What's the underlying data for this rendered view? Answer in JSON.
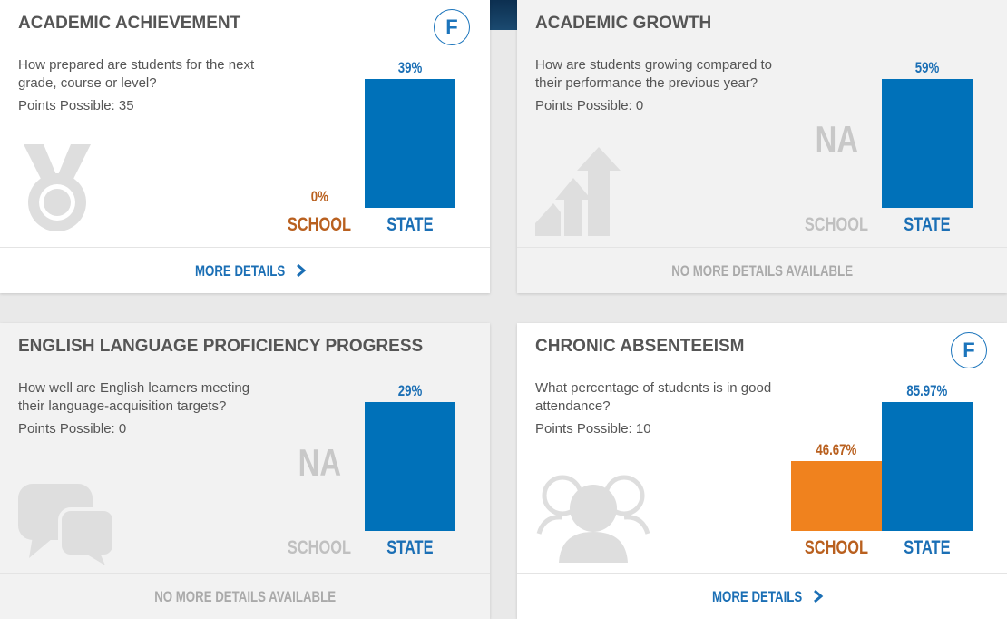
{
  "cards": [
    {
      "title": "ACADEMIC ACHIEVEMENT",
      "grade": "F",
      "question": "How prepared are students for the next grade, course or level?",
      "points": "Points Possible: 35",
      "school": {
        "label": "SCHOOL",
        "value": 0,
        "value_label": "0%"
      },
      "state": {
        "label": "STATE",
        "value": 39,
        "value_label": "39%"
      },
      "footer": "MORE DETAILS",
      "link": true
    },
    {
      "title": "ACADEMIC GROWTH",
      "question": "How are students growing compared to their performance the previous year?",
      "points": "Points Possible: 0",
      "school": {
        "label": "SCHOOL",
        "value": null,
        "value_label": "NA"
      },
      "state": {
        "label": "STATE",
        "value": 59,
        "value_label": "59%"
      },
      "footer": "NO MORE DETAILS AVAILABLE",
      "link": false
    },
    {
      "title": "ENGLISH LANGUAGE PROFICIENCY PROGRESS",
      "question": "How well are English learners meeting their language-acquisition targets?",
      "points": "Points Possible: 0",
      "school": {
        "label": "SCHOOL",
        "value": null,
        "value_label": "NA"
      },
      "state": {
        "label": "STATE",
        "value": 29,
        "value_label": "29%"
      },
      "footer": "NO MORE DETAILS AVAILABLE",
      "link": false
    },
    {
      "title": "CHRONIC ABSENTEEISM",
      "grade": "F",
      "question": "What percentage of students is in good attendance?",
      "points": "Points Possible: 10",
      "school": {
        "label": "SCHOOL",
        "value": 46.67,
        "value_label": "46.67%"
      },
      "state": {
        "label": "STATE",
        "value": 85.97,
        "value_label": "85.97%"
      },
      "footer": "MORE DETAILS",
      "link": true
    }
  ]
}
